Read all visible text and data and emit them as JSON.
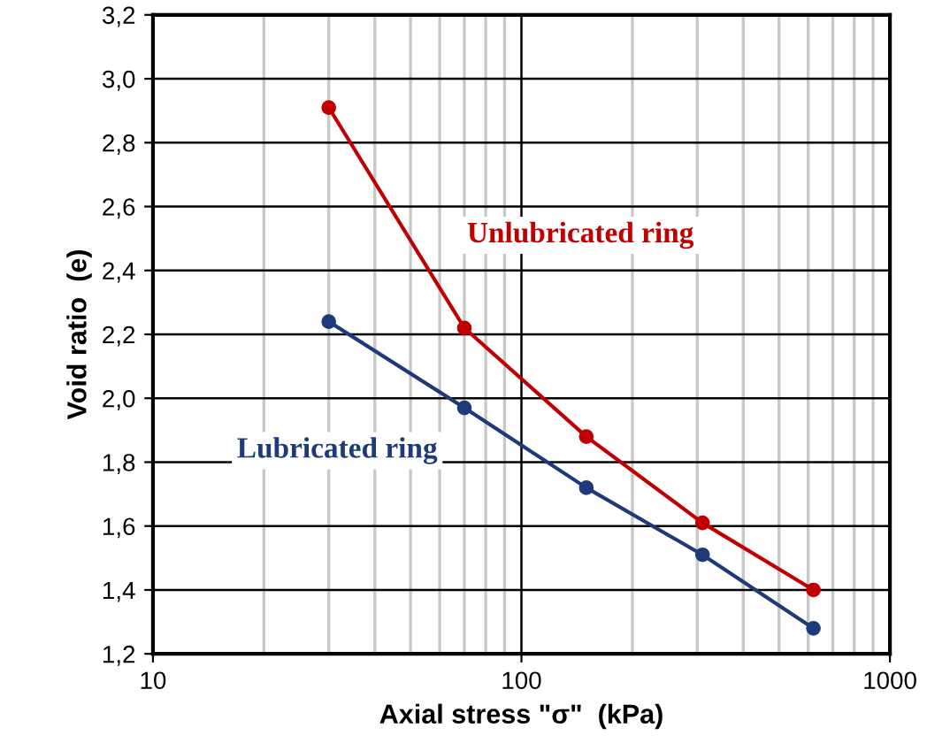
{
  "chart_data": {
    "type": "line",
    "xlabel": "Axial stress \"σ\"  (kPa)",
    "ylabel": "Void ratio  (e)",
    "log": "x",
    "grid": true,
    "marker": "circle",
    "line_style": "solid",
    "xlim": [
      10,
      1000
    ],
    "xticks": [
      10,
      100,
      1000
    ],
    "ylim": [
      1.2,
      3.2
    ],
    "yticks": [
      {
        "value": 1.2,
        "label": "1,2"
      },
      {
        "value": 1.4,
        "label": "1,4"
      },
      {
        "value": 1.6,
        "label": "1,6"
      },
      {
        "value": 1.8,
        "label": "1,8"
      },
      {
        "value": 2.0,
        "label": "2,0"
      },
      {
        "value": 2.2,
        "label": "2,2"
      },
      {
        "value": 2.4,
        "label": "2,4"
      },
      {
        "value": 2.6,
        "label": "2,6"
      },
      {
        "value": 2.8,
        "label": "2,8"
      },
      {
        "value": 3.0,
        "label": "3,0"
      },
      {
        "value": 3.2,
        "label": "3,2"
      }
    ],
    "x": [
      30,
      70,
      150,
      310,
      620
    ],
    "series": [
      {
        "name": "Unlubricated ring",
        "color": "#c00000",
        "values": [
          2.91,
          2.22,
          1.88,
          1.61,
          1.4
        ]
      },
      {
        "name": "Lubricated ring",
        "color": "#1f3a7a",
        "values": [
          2.24,
          1.97,
          1.72,
          1.51,
          1.28
        ]
      }
    ]
  }
}
